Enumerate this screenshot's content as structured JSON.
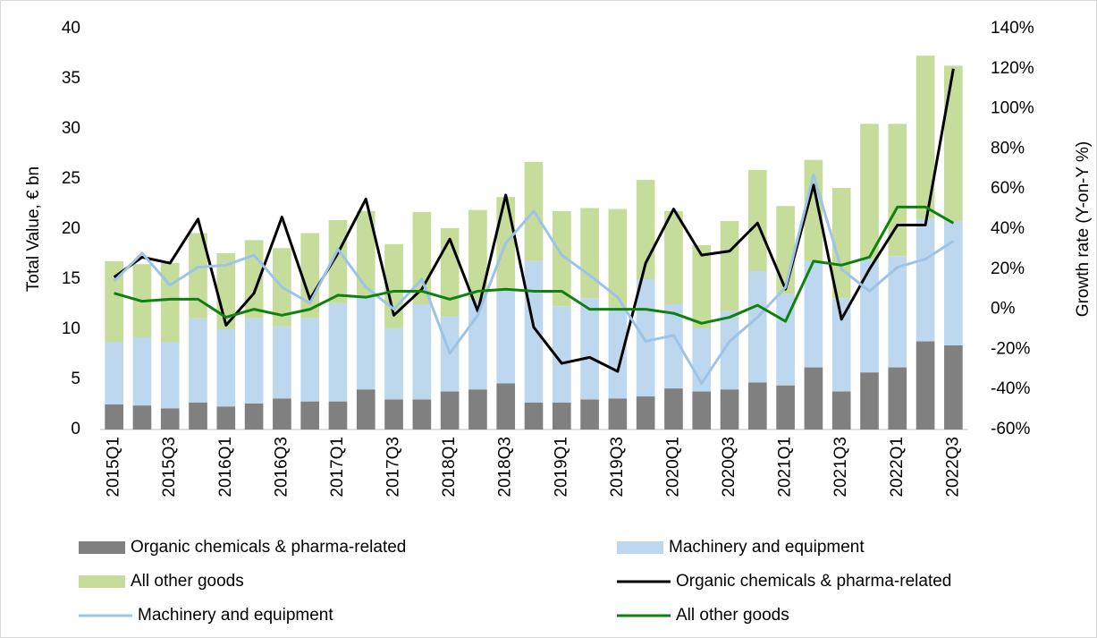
{
  "chart_data": {
    "type": "bar",
    "ylabel": "Total Value, € bn",
    "y2label": "Growth rate (Y-on-Y %)",
    "categories": [
      "2015Q1",
      null,
      "2015Q3",
      null,
      "2016Q1",
      null,
      "2016Q3",
      null,
      "2017Q1",
      null,
      "2017Q3",
      null,
      "2018Q1",
      null,
      "2018Q3",
      null,
      "2019Q1",
      null,
      "2019Q3",
      null,
      "2020Q1",
      null,
      "2020Q3",
      null,
      "2021Q1",
      null,
      "2021Q3",
      null,
      "2022Q1",
      null,
      "2022Q3"
    ],
    "ylim": [
      0,
      40
    ],
    "yticks": [
      0,
      5,
      10,
      15,
      20,
      25,
      30,
      35,
      40
    ],
    "y2lim": [
      -60,
      140
    ],
    "y2ticks": [
      {
        "value": -60,
        "label": "-60%"
      },
      {
        "value": -40,
        "label": "-40%"
      },
      {
        "value": -20,
        "label": "-20%"
      },
      {
        "value": 0,
        "label": "0%"
      },
      {
        "value": 20,
        "label": "20%"
      },
      {
        "value": 40,
        "label": "40%"
      },
      {
        "value": 60,
        "label": "60%"
      },
      {
        "value": 80,
        "label": "80%"
      },
      {
        "value": 100,
        "label": "100%"
      },
      {
        "value": 120,
        "label": "120%"
      },
      {
        "value": 140,
        "label": "140%"
      }
    ],
    "stacked": true,
    "series": [
      {
        "name": "Organic chemicals & pharma-related",
        "type": "bar",
        "color": "#808080",
        "values": [
          2.5,
          2.4,
          2.1,
          2.7,
          2.3,
          2.6,
          3.1,
          2.8,
          2.8,
          4.0,
          3.0,
          3.0,
          3.8,
          4.0,
          4.6,
          2.7,
          2.7,
          3.0,
          3.1,
          3.3,
          4.1,
          3.8,
          4.0,
          4.7,
          4.4,
          6.2,
          3.8,
          5.7,
          6.2,
          8.8,
          8.4
        ]
      },
      {
        "name": "Machinery and equipment",
        "type": "bar",
        "color": "#bdd7ee",
        "values": [
          6.2,
          6.8,
          6.6,
          8.4,
          7.7,
          8.5,
          7.2,
          8.3,
          9.8,
          9.2,
          7.1,
          9.5,
          7.5,
          9.0,
          9.4,
          14.1,
          9.6,
          10.1,
          9.1,
          11.7,
          8.4,
          6.3,
          7.8,
          11.1,
          9.1,
          10.6,
          9.3,
          11.3,
          11.1,
          12.2,
          12.4
        ]
      },
      {
        "name": "All other goods",
        "type": "bar",
        "color": "#c5dc9a",
        "values": [
          8.1,
          7.3,
          7.9,
          8.5,
          7.6,
          7.8,
          7.8,
          8.5,
          8.3,
          8.6,
          8.4,
          9.2,
          8.8,
          8.9,
          9.2,
          9.9,
          9.5,
          9.0,
          9.8,
          9.9,
          9.3,
          8.3,
          9.0,
          10.1,
          8.8,
          10.1,
          11.0,
          13.5,
          13.2,
          16.3,
          15.5
        ]
      },
      {
        "name": "Organic chemicals & pharma-related",
        "type": "line",
        "axis": "y2",
        "color": "#000000",
        "values": [
          16,
          26,
          23,
          45,
          -8,
          8,
          46,
          5,
          28,
          55,
          -3,
          10,
          35,
          -1,
          57,
          -9,
          -27,
          -24,
          -31,
          23,
          50,
          27,
          29,
          43,
          10,
          62,
          -5,
          20,
          42,
          42,
          120
        ]
      },
      {
        "name": "Machinery and equipment",
        "type": "line",
        "axis": "y2",
        "color": "#9dc3e6",
        "values": [
          14,
          28,
          12,
          21,
          22,
          27,
          11,
          3,
          30,
          11,
          0,
          15,
          -22,
          -3,
          33,
          49,
          27,
          17,
          6,
          -16,
          -13,
          -37,
          -16,
          -4,
          11,
          67,
          20,
          9,
          21,
          25,
          34
        ]
      },
      {
        "name": "All other goods",
        "type": "line",
        "axis": "y2",
        "color": "#108010",
        "values": [
          8,
          4,
          5,
          5,
          -4,
          0,
          -3,
          0,
          7,
          6,
          9,
          9,
          5,
          9,
          10,
          9,
          9,
          0,
          0,
          0,
          -2,
          -7,
          -4,
          2,
          -6,
          24,
          22,
          26,
          51,
          51,
          43
        ]
      }
    ]
  }
}
